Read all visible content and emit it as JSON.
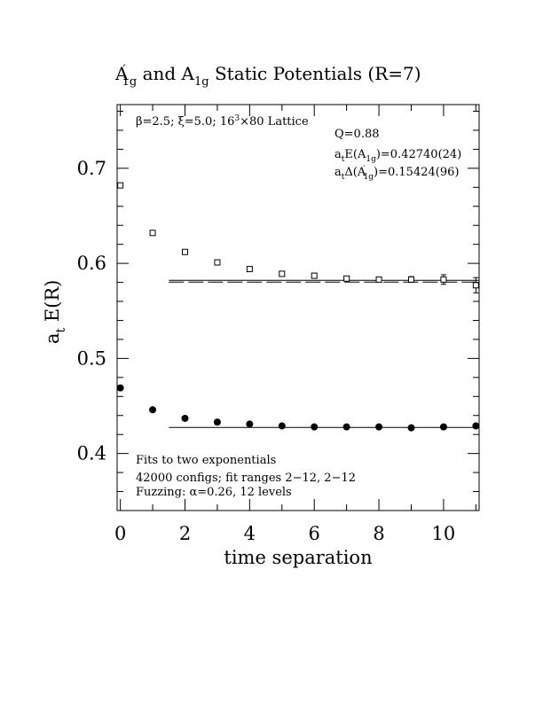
{
  "chart_data": {
    "type": "scatter",
    "title_parts": [
      "A",
      "′",
      "1g",
      " and A",
      "1g",
      " Static Potentials (R=7)"
    ],
    "xlabel": "time separation",
    "ylabel_parts": [
      "a",
      "t",
      " E(R)"
    ],
    "xlim": [
      -0.1,
      11.1
    ],
    "ylim": [
      0.34,
      0.767
    ],
    "x_ticks": [
      0,
      2,
      4,
      6,
      8,
      10
    ],
    "x_tick_labels": [
      "0",
      "2",
      "4",
      "6",
      "8",
      "10"
    ],
    "y_ticks": [
      0.4,
      0.5,
      0.6,
      0.7
    ],
    "y_tick_labels": [
      "0.4",
      "0.5",
      "0.6",
      "0.7"
    ],
    "grid": false,
    "series": [
      {
        "marker": "open-square",
        "x": [
          0,
          1,
          2,
          3,
          4,
          5,
          6,
          7,
          8,
          9,
          10,
          11
        ],
        "y": [
          0.682,
          0.632,
          0.612,
          0.601,
          0.594,
          0.589,
          0.587,
          0.584,
          0.583,
          0.583,
          0.583,
          0.577
        ],
        "yerr": [
          0.0005,
          0.0005,
          0.0008,
          0.001,
          0.001,
          0.0012,
          0.0015,
          0.002,
          0.0025,
          0.003,
          0.005,
          0.008
        ]
      },
      {
        "marker": "filled-circle",
        "x": [
          0,
          1,
          2,
          3,
          4,
          5,
          6,
          7,
          8,
          9,
          10,
          11
        ],
        "y": [
          0.469,
          0.446,
          0.437,
          0.433,
          0.431,
          0.429,
          0.428,
          0.428,
          0.428,
          0.427,
          0.428,
          0.429
        ],
        "yerr": [
          0,
          0,
          0,
          0,
          0,
          0,
          0,
          0,
          0,
          0,
          0,
          0
        ]
      }
    ],
    "fit_lines": [
      {
        "x_start": 1.5,
        "x_end": 11.1,
        "y": 0.5822,
        "style": "solid"
      },
      {
        "x_start": 1.5,
        "x_end": 11.1,
        "y": 0.5803,
        "style": "dashed"
      },
      {
        "x_start": 1.5,
        "x_end": 11.1,
        "y": 0.4274,
        "style": "solid"
      }
    ],
    "annotations": {
      "lattice": [
        "β=2.5; ξ=5.0; 16",
        "3",
        "×80 Lattice"
      ],
      "q_value": "Q=0.88",
      "fit_e_parts": [
        "a",
        "t",
        "E(A",
        "1g",
        ")=0.42740(24)"
      ],
      "fit_delta_parts": [
        "a",
        "t",
        "Δ(A",
        "′",
        "1g",
        ")=0.15424(96)"
      ],
      "bottom_lines": [
        "Fits to two exponentials",
        "42000 configs; fit ranges 2−12, 2−12",
        "Fuzzing: α=0.26, 12 levels"
      ]
    }
  }
}
